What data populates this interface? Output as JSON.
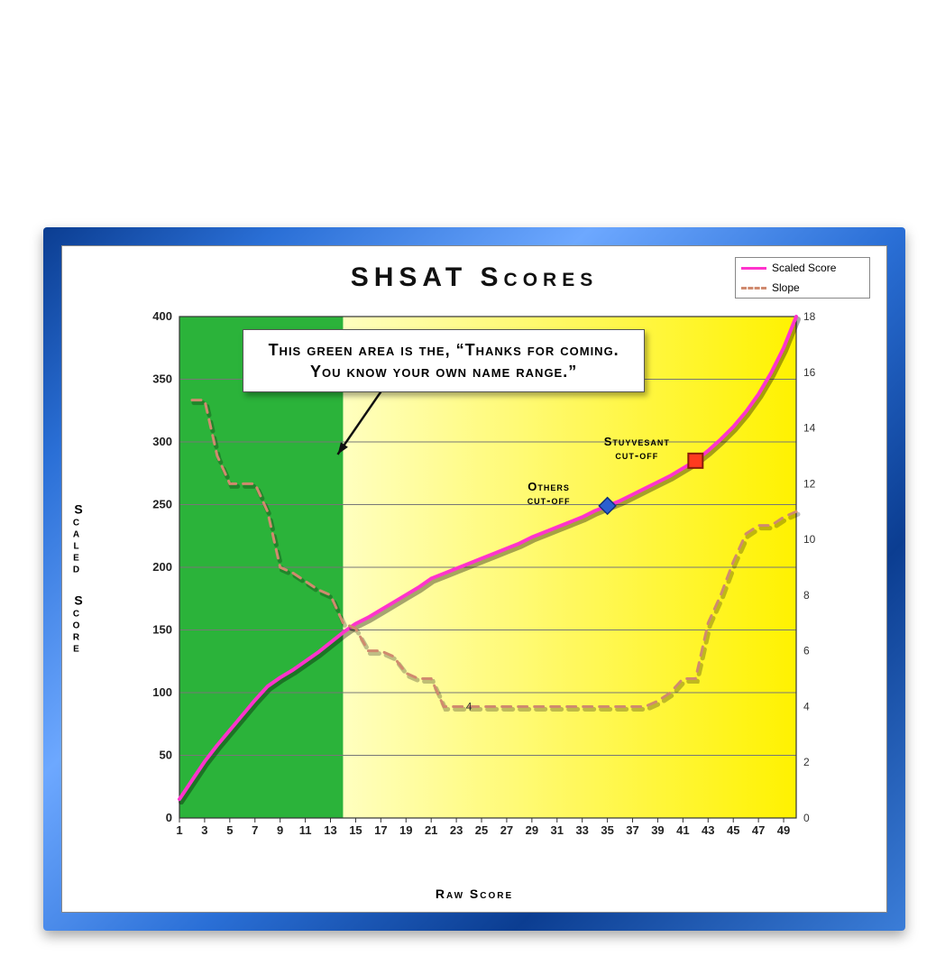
{
  "chart": {
    "type": "line-dual-axis",
    "title": "SHSAT Scores",
    "x_label": "Raw Score",
    "y_left_label": "Scaled Score",
    "x_range": [
      1,
      50
    ],
    "x_ticks": [
      1,
      3,
      5,
      7,
      9,
      11,
      13,
      15,
      17,
      19,
      21,
      23,
      25,
      27,
      29,
      31,
      33,
      35,
      37,
      39,
      41,
      43,
      45,
      47,
      49
    ],
    "y_left": {
      "range": [
        0,
        400
      ],
      "ticks": [
        0,
        50,
        100,
        150,
        200,
        250,
        300,
        350,
        400
      ]
    },
    "y_right": {
      "range": [
        0,
        18
      ],
      "ticks": [
        0,
        2,
        4,
        6,
        8,
        10,
        12,
        14,
        16,
        18
      ]
    },
    "background_color": "#ffffff",
    "gridline_color": "#777777",
    "frame_gradient": [
      "#0b3d91",
      "#2a6fd6",
      "#6da8ff",
      "#2a6fd6",
      "#0b3d91",
      "#3b7dd8"
    ],
    "green_zone": {
      "x_from": 1,
      "x_to": 14,
      "color": "#2bb33a"
    },
    "yellow_zone": {
      "x_from": 14,
      "x_to": 50,
      "color_left": "#ffffbf",
      "color_right": "#fff200"
    },
    "series": {
      "scaled_score": {
        "label": "Scaled Score",
        "color": "#ff33cc",
        "line_width": 4,
        "points": [
          [
            1,
            15
          ],
          [
            2,
            30
          ],
          [
            3,
            45
          ],
          [
            4,
            58
          ],
          [
            5,
            70
          ],
          [
            6,
            82
          ],
          [
            7,
            94
          ],
          [
            8,
            105
          ],
          [
            9,
            112
          ],
          [
            10,
            118
          ],
          [
            11,
            125
          ],
          [
            12,
            132
          ],
          [
            13,
            140
          ],
          [
            14,
            148
          ],
          [
            15,
            155
          ],
          [
            16,
            160
          ],
          [
            17,
            166
          ],
          [
            18,
            172
          ],
          [
            19,
            178
          ],
          [
            20,
            184
          ],
          [
            21,
            191
          ],
          [
            22,
            195
          ],
          [
            23,
            199
          ],
          [
            24,
            203
          ],
          [
            25,
            207
          ],
          [
            26,
            211
          ],
          [
            27,
            215
          ],
          [
            28,
            219
          ],
          [
            29,
            224
          ],
          [
            30,
            228
          ],
          [
            31,
            232
          ],
          [
            32,
            236
          ],
          [
            33,
            240
          ],
          [
            34,
            245
          ],
          [
            35,
            249
          ],
          [
            36,
            253
          ],
          [
            37,
            258
          ],
          [
            38,
            263
          ],
          [
            39,
            268
          ],
          [
            40,
            273
          ],
          [
            41,
            279
          ],
          [
            42,
            285
          ],
          [
            43,
            293
          ],
          [
            44,
            302
          ],
          [
            45,
            312
          ],
          [
            46,
            324
          ],
          [
            47,
            338
          ],
          [
            48,
            355
          ],
          [
            49,
            375
          ],
          [
            50,
            400
          ]
        ]
      },
      "slope": {
        "label": "Slope",
        "color": "#d08a6e",
        "line_width": 3,
        "dash": "10,8",
        "points": [
          [
            2,
            15
          ],
          [
            3,
            15
          ],
          [
            4,
            13
          ],
          [
            5,
            12
          ],
          [
            6,
            12
          ],
          [
            7,
            12
          ],
          [
            8,
            11
          ],
          [
            9,
            9
          ],
          [
            10,
            8.8
          ],
          [
            11,
            8.5
          ],
          [
            12,
            8.2
          ],
          [
            13,
            8
          ],
          [
            14,
            7
          ],
          [
            15,
            6.8
          ],
          [
            16,
            6
          ],
          [
            17,
            6
          ],
          [
            18,
            5.8
          ],
          [
            19,
            5.2
          ],
          [
            20,
            5
          ],
          [
            21,
            5
          ],
          [
            22,
            4
          ],
          [
            23,
            4
          ],
          [
            24,
            4
          ],
          [
            25,
            4
          ],
          [
            26,
            4
          ],
          [
            27,
            4
          ],
          [
            28,
            4
          ],
          [
            29,
            4
          ],
          [
            30,
            4
          ],
          [
            31,
            4
          ],
          [
            32,
            4
          ],
          [
            33,
            4
          ],
          [
            34,
            4
          ],
          [
            35,
            4
          ],
          [
            36,
            4
          ],
          [
            37,
            4
          ],
          [
            38,
            4
          ],
          [
            39,
            4.2
          ],
          [
            40,
            4.5
          ],
          [
            41,
            5
          ],
          [
            42,
            5
          ],
          [
            43,
            7
          ],
          [
            44,
            8
          ],
          [
            45,
            9.2
          ],
          [
            46,
            10.2
          ],
          [
            47,
            10.5
          ],
          [
            48,
            10.5
          ],
          [
            49,
            10.8
          ],
          [
            50,
            11
          ]
        ],
        "inline_value_label": {
          "x": 24,
          "y": 4,
          "text": "4"
        }
      }
    },
    "markers": [
      {
        "label": "Stuyvesant cut-off",
        "x": 42,
        "y": 285,
        "shape": "square",
        "fill": "#ff3b1f",
        "stroke": "#8a1c0a",
        "size": 16
      },
      {
        "label": "Others cut-off",
        "x": 35,
        "y": 249,
        "shape": "diamond",
        "fill": "#2b5fcf",
        "stroke": "#12307a",
        "size": 12
      }
    ],
    "callout": {
      "text": "This green area is the, “Thanks for coming. You know your own name range.”",
      "arrow_to_x": 14,
      "arrow_to_y": 290
    },
    "legend": [
      {
        "label": "Scaled Score",
        "color": "#ff33cc",
        "dash": false
      },
      {
        "label": "Slope",
        "color": "#d08a6e",
        "dash": true
      }
    ],
    "title_fontsize": 30,
    "label_fontsize": 14,
    "tick_fontsize": 13
  }
}
